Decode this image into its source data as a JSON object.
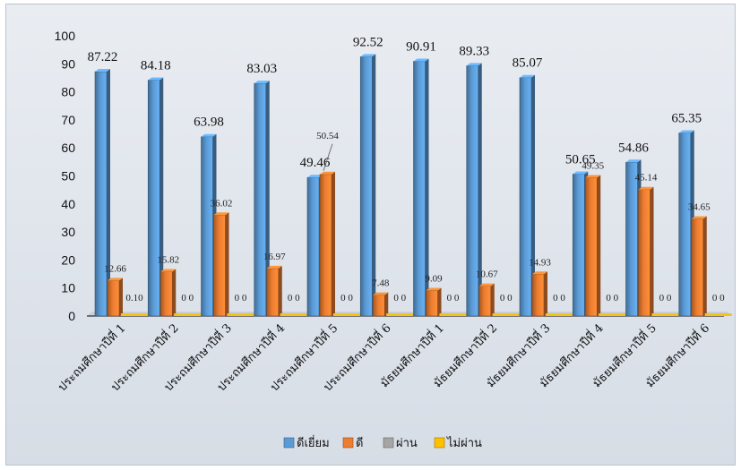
{
  "chart_data": {
    "type": "bar",
    "title": "",
    "xlabel": "",
    "ylabel": "",
    "ylim": [
      0,
      100
    ],
    "yticks": [
      0,
      10,
      20,
      30,
      40,
      50,
      60,
      70,
      80,
      90,
      100
    ],
    "categories": [
      "ประถมศึกษาปีที่ 1",
      "ประถมศึกษาปีที่ 2",
      "ประถมศึกษาปีที่ 3",
      "ประถมศึกษาปีที่ 4",
      "ประถมศึกษาปีที่ 5",
      "ประถมศึกษาปีที่ 6",
      "มัธยมศึกษาปีที่ 1",
      "มัธยมศึกษาปีที่ 2",
      "มัธยมศึกษาปีที่ 3",
      "มัธยมศึกษาปีที่ 4",
      "มัธยมศึกษาปีที่ 5",
      "มัธยมศึกษาปีที่ 6"
    ],
    "series": [
      {
        "name": "ดีเยี่ยม",
        "color": "#5b9bd5",
        "values": [
          87.22,
          84.18,
          63.98,
          83.03,
          49.46,
          92.52,
          90.91,
          89.33,
          85.07,
          50.65,
          54.86,
          65.35
        ]
      },
      {
        "name": "ดี",
        "color": "#ed7d31",
        "values": [
          12.66,
          15.82,
          36.02,
          16.97,
          50.54,
          7.48,
          9.09,
          10.67,
          14.93,
          49.35,
          45.14,
          34.65
        ]
      },
      {
        "name": "ผ่าน",
        "color": "#a5a5a5",
        "values": [
          0.12,
          0,
          0,
          0,
          0,
          0,
          0,
          0,
          0,
          0,
          0,
          0
        ]
      },
      {
        "name": "ไม่ผ่าน",
        "color": "#ffc000",
        "values": [
          0,
          0,
          0,
          0,
          0,
          0,
          0,
          0,
          0,
          0,
          0,
          0
        ]
      }
    ],
    "data_labels": {
      "s0": [
        "87.22",
        "84.18",
        "63.98",
        "83.03",
        "49.46",
        "92.52",
        "90.91",
        "89.33",
        "85.07",
        "50.65",
        "54.86",
        "65.35"
      ],
      "s1": [
        "12.66",
        "15.82",
        "36.02",
        "16.97",
        "50.54",
        "7.48",
        "9.09",
        "10.67",
        "14.93",
        "49.35",
        "45.14",
        "34.65"
      ],
      "zero": [
        "0.10",
        "0 0",
        "0 0",
        "0 0",
        "0 0",
        "0 0",
        "0 0",
        "0 0",
        "0 0",
        "0 0",
        "0 0",
        "0 0"
      ]
    },
    "grid": false,
    "legend": "bottom"
  }
}
